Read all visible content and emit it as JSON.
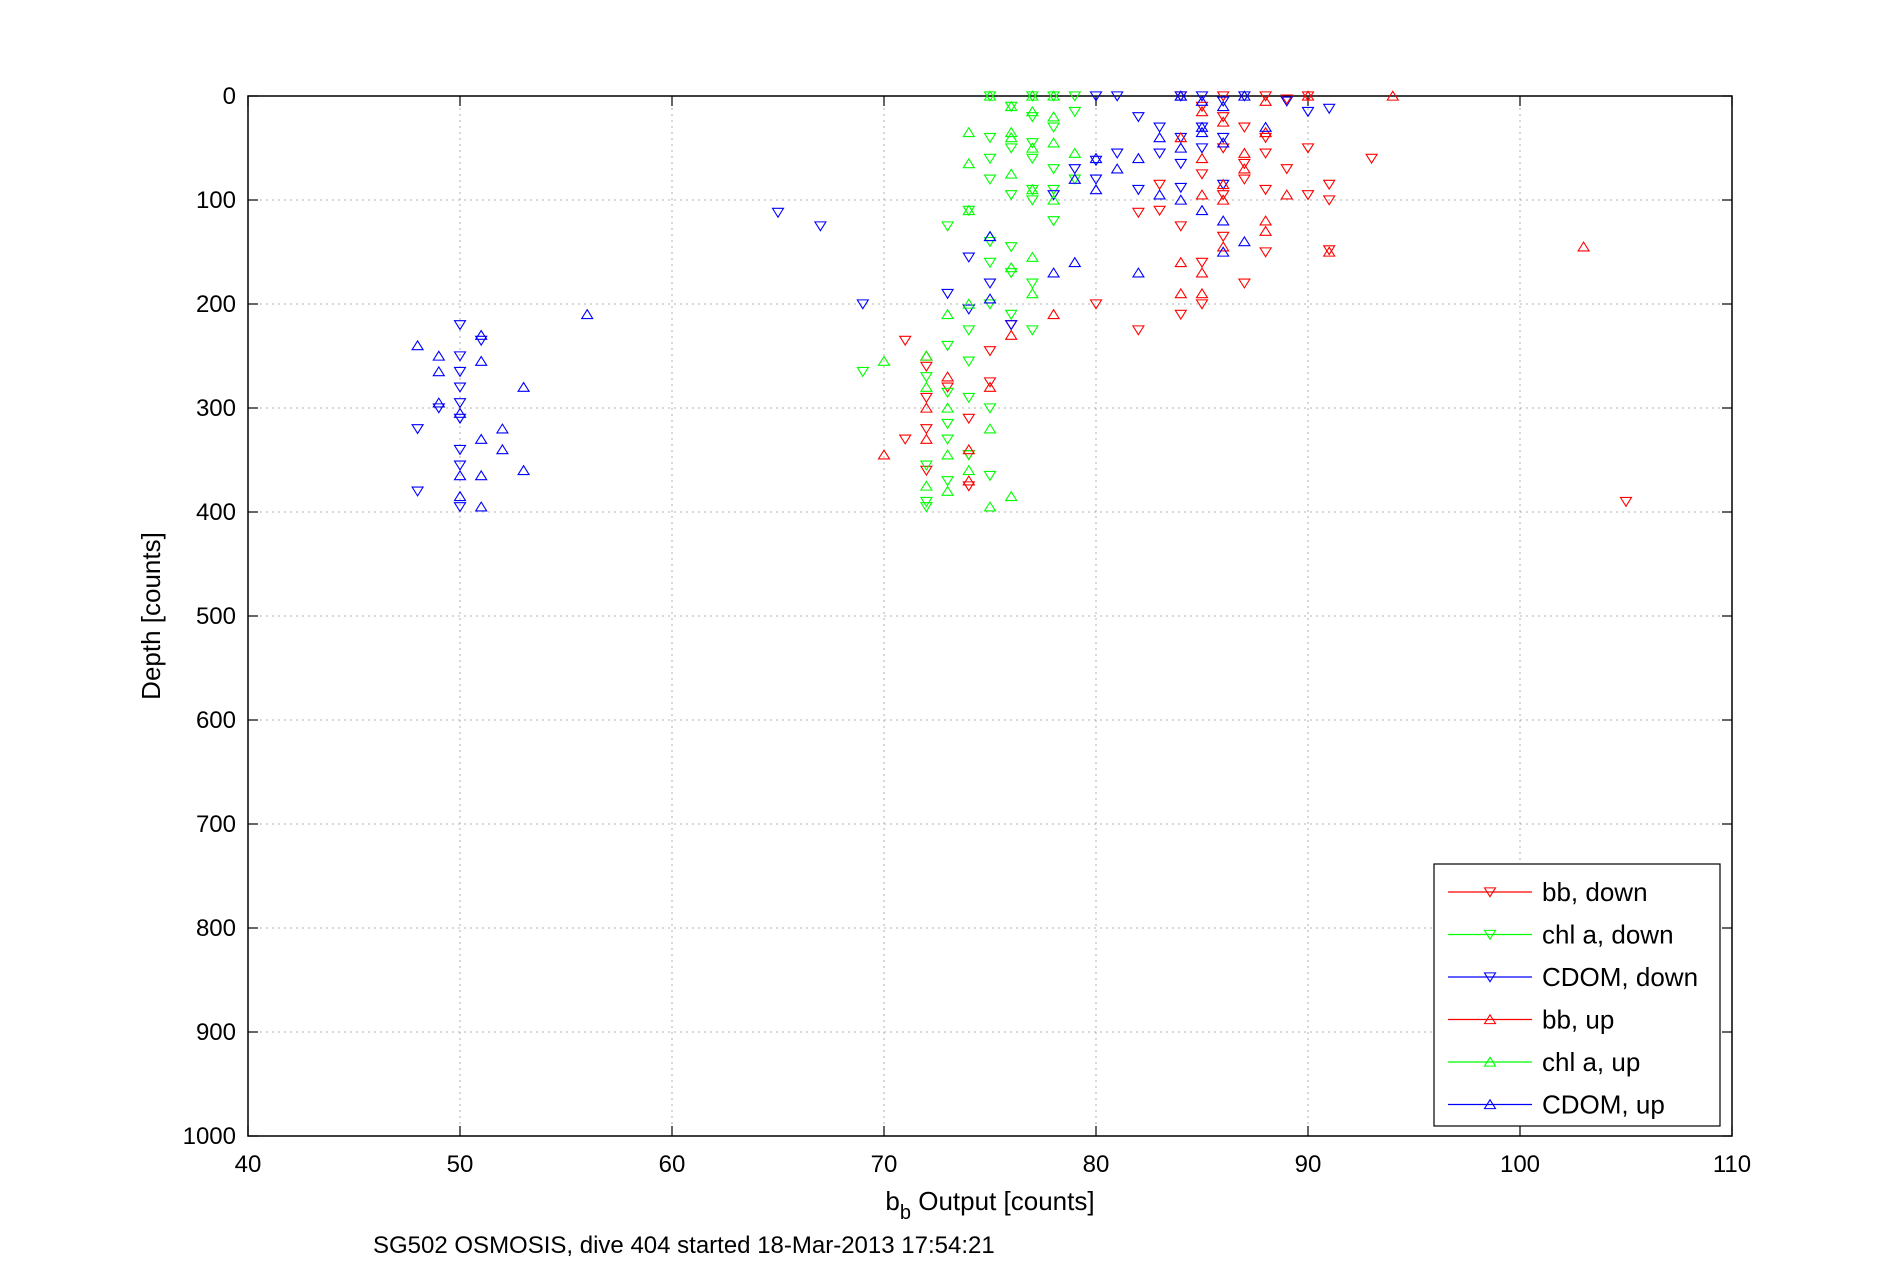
{
  "chart_data": {
    "type": "scatter",
    "xlabel_main": "b",
    "xlabel_sub": "b",
    "xlabel_rest": " Output [counts]",
    "ylabel": "Depth [counts]",
    "caption": "SG502 OSMOSIS, dive 404 started 18-Mar-2013 17:54:21",
    "xlim": [
      40,
      110
    ],
    "ylim": [
      0,
      1000
    ],
    "y_reversed": true,
    "grid": true,
    "legend_position": "bottom-right",
    "xticks": [
      "40",
      "50",
      "60",
      "70",
      "80",
      "90",
      "100",
      "110"
    ],
    "yticks": [
      "0",
      "100",
      "200",
      "300",
      "400",
      "500",
      "600",
      "700",
      "800",
      "900",
      "1000"
    ],
    "series": [
      {
        "name": "bb, down",
        "color": "#ff0000",
        "marker": "triangle-down",
        "points": [
          [
            84,
            0
          ],
          [
            86,
            0
          ],
          [
            88,
            0
          ],
          [
            89,
            3
          ],
          [
            90,
            0
          ],
          [
            85,
            10
          ],
          [
            86,
            20
          ],
          [
            87,
            30
          ],
          [
            88,
            40
          ],
          [
            86,
            50
          ],
          [
            88,
            55
          ],
          [
            87,
            65
          ],
          [
            89,
            70
          ],
          [
            85,
            75
          ],
          [
            87,
            80
          ],
          [
            88,
            90
          ],
          [
            86,
            95
          ],
          [
            90,
            95
          ],
          [
            91,
            100
          ],
          [
            82,
            112
          ],
          [
            84,
            125
          ],
          [
            86,
            135
          ],
          [
            88,
            150
          ],
          [
            91,
            148
          ],
          [
            93,
            60
          ],
          [
            85,
            160
          ],
          [
            87,
            180
          ],
          [
            82,
            225
          ],
          [
            84,
            210
          ],
          [
            85,
            200
          ],
          [
            80,
            200
          ],
          [
            76,
            220
          ],
          [
            71,
            235
          ],
          [
            72,
            260
          ],
          [
            75,
            245
          ],
          [
            75,
            275
          ],
          [
            73,
            280
          ],
          [
            72,
            290
          ],
          [
            74,
            310
          ],
          [
            72,
            320
          ],
          [
            71,
            330
          ],
          [
            74,
            345
          ],
          [
            72,
            360
          ],
          [
            74,
            375
          ],
          [
            105,
            390
          ],
          [
            90,
            50
          ],
          [
            91,
            85
          ],
          [
            83,
            85
          ],
          [
            83,
            110
          ]
        ]
      },
      {
        "name": "chl a, down",
        "color": "#00ff00",
        "marker": "triangle-down",
        "points": [
          [
            75,
            0
          ],
          [
            77,
            0
          ],
          [
            78,
            0
          ],
          [
            79,
            0
          ],
          [
            76,
            10
          ],
          [
            77,
            20
          ],
          [
            78,
            30
          ],
          [
            79,
            15
          ],
          [
            75,
            40
          ],
          [
            76,
            50
          ],
          [
            77,
            60
          ],
          [
            78,
            70
          ],
          [
            75,
            80
          ],
          [
            76,
            95
          ],
          [
            77,
            100
          ],
          [
            78,
            90
          ],
          [
            74,
            110
          ],
          [
            73,
            125
          ],
          [
            75,
            140
          ],
          [
            76,
            145
          ],
          [
            75,
            160
          ],
          [
            76,
            170
          ],
          [
            77,
            180
          ],
          [
            75,
            200
          ],
          [
            76,
            210
          ],
          [
            74,
            225
          ],
          [
            73,
            240
          ],
          [
            74,
            255
          ],
          [
            72,
            270
          ],
          [
            73,
            285
          ],
          [
            69,
            265
          ],
          [
            74,
            290
          ],
          [
            75,
            300
          ],
          [
            73,
            330
          ],
          [
            72,
            355
          ],
          [
            73,
            370
          ],
          [
            75,
            365
          ],
          [
            72,
            390
          ],
          [
            74,
            345
          ],
          [
            73,
            315
          ],
          [
            72,
            395
          ],
          [
            77,
            225
          ],
          [
            75,
            60
          ],
          [
            77,
            90
          ],
          [
            78,
            120
          ],
          [
            79,
            80
          ],
          [
            77,
            45
          ]
        ]
      },
      {
        "name": "CDOM, down",
        "color": "#0000ff",
        "marker": "triangle-down",
        "points": [
          [
            80,
            0
          ],
          [
            81,
            0
          ],
          [
            84,
            0
          ],
          [
            86,
            5
          ],
          [
            87,
            0
          ],
          [
            89,
            5
          ],
          [
            90,
            15
          ],
          [
            91,
            12
          ],
          [
            82,
            20
          ],
          [
            83,
            30
          ],
          [
            84,
            40
          ],
          [
            85,
            50
          ],
          [
            81,
            55
          ],
          [
            80,
            62
          ],
          [
            79,
            70
          ],
          [
            80,
            80
          ],
          [
            82,
            90
          ],
          [
            84,
            88
          ],
          [
            86,
            85
          ],
          [
            78,
            95
          ],
          [
            74,
            155
          ],
          [
            75,
            180
          ],
          [
            73,
            190
          ],
          [
            74,
            205
          ],
          [
            76,
            220
          ],
          [
            65,
            112
          ],
          [
            67,
            125
          ],
          [
            69,
            200
          ],
          [
            50,
            220
          ],
          [
            51,
            235
          ],
          [
            50,
            250
          ],
          [
            50,
            265
          ],
          [
            50,
            280
          ],
          [
            50,
            295
          ],
          [
            50,
            310
          ],
          [
            49,
            300
          ],
          [
            48,
            320
          ],
          [
            50,
            340
          ],
          [
            50,
            355
          ],
          [
            48,
            380
          ],
          [
            50,
            395
          ],
          [
            85,
            30
          ],
          [
            84,
            65
          ],
          [
            86,
            40
          ],
          [
            83,
            55
          ],
          [
            85,
            0
          ]
        ]
      },
      {
        "name": "bb, up",
        "color": "#ff0000",
        "marker": "triangle-up",
        "points": [
          [
            94,
            0
          ],
          [
            90,
            0
          ],
          [
            88,
            5
          ],
          [
            85,
            15
          ],
          [
            86,
            25
          ],
          [
            84,
            40
          ],
          [
            85,
            60
          ],
          [
            87,
            70
          ],
          [
            86,
            85
          ],
          [
            89,
            95
          ],
          [
            88,
            120
          ],
          [
            88,
            130
          ],
          [
            91,
            150
          ],
          [
            86,
            145
          ],
          [
            84,
            160
          ],
          [
            85,
            170
          ],
          [
            85,
            190
          ],
          [
            84,
            190
          ],
          [
            78,
            210
          ],
          [
            76,
            230
          ],
          [
            72,
            250
          ],
          [
            73,
            270
          ],
          [
            75,
            280
          ],
          [
            72,
            300
          ],
          [
            70,
            345
          ],
          [
            74,
            340
          ],
          [
            72,
            330
          ],
          [
            74,
            370
          ],
          [
            103,
            145
          ],
          [
            87,
            55
          ],
          [
            85,
            95
          ],
          [
            88,
            35
          ],
          [
            86,
            100
          ]
        ]
      },
      {
        "name": "chl a, up",
        "color": "#00ff00",
        "marker": "triangle-up",
        "points": [
          [
            75,
            0
          ],
          [
            77,
            0
          ],
          [
            78,
            0
          ],
          [
            76,
            10
          ],
          [
            77,
            15
          ],
          [
            78,
            20
          ],
          [
            74,
            35
          ],
          [
            76,
            40
          ],
          [
            77,
            50
          ],
          [
            78,
            45
          ],
          [
            74,
            65
          ],
          [
            76,
            75
          ],
          [
            77,
            90
          ],
          [
            78,
            100
          ],
          [
            74,
            110
          ],
          [
            75,
            135
          ],
          [
            77,
            155
          ],
          [
            76,
            165
          ],
          [
            77,
            190
          ],
          [
            74,
            200
          ],
          [
            73,
            210
          ],
          [
            72,
            250
          ],
          [
            70,
            255
          ],
          [
            72,
            280
          ],
          [
            73,
            300
          ],
          [
            75,
            320
          ],
          [
            73,
            345
          ],
          [
            74,
            360
          ],
          [
            73,
            380
          ],
          [
            72,
            375
          ],
          [
            75,
            395
          ],
          [
            76,
            385
          ],
          [
            76,
            35
          ],
          [
            79,
            55
          ]
        ]
      },
      {
        "name": "CDOM, up",
        "color": "#0000ff",
        "marker": "triangle-up",
        "points": [
          [
            84,
            0
          ],
          [
            85,
            5
          ],
          [
            86,
            10
          ],
          [
            87,
            0
          ],
          [
            88,
            30
          ],
          [
            86,
            45
          ],
          [
            85,
            30
          ],
          [
            83,
            40
          ],
          [
            84,
            50
          ],
          [
            82,
            60
          ],
          [
            81,
            70
          ],
          [
            79,
            80
          ],
          [
            80,
            90
          ],
          [
            83,
            95
          ],
          [
            84,
            100
          ],
          [
            85,
            110
          ],
          [
            86,
            120
          ],
          [
            87,
            140
          ],
          [
            86,
            150
          ],
          [
            79,
            160
          ],
          [
            78,
            170
          ],
          [
            82,
            170
          ],
          [
            75,
            135
          ],
          [
            56,
            210
          ],
          [
            48,
            240
          ],
          [
            49,
            250
          ],
          [
            51,
            230
          ],
          [
            51,
            255
          ],
          [
            53,
            280
          ],
          [
            49,
            265
          ],
          [
            50,
            305
          ],
          [
            49,
            295
          ],
          [
            51,
            330
          ],
          [
            52,
            320
          ],
          [
            52,
            340
          ],
          [
            50,
            365
          ],
          [
            51,
            365
          ],
          [
            53,
            360
          ],
          [
            50,
            385
          ],
          [
            51,
            395
          ],
          [
            75,
            195
          ],
          [
            84,
            0
          ],
          [
            85,
            35
          ],
          [
            80,
            60
          ]
        ]
      }
    ]
  }
}
